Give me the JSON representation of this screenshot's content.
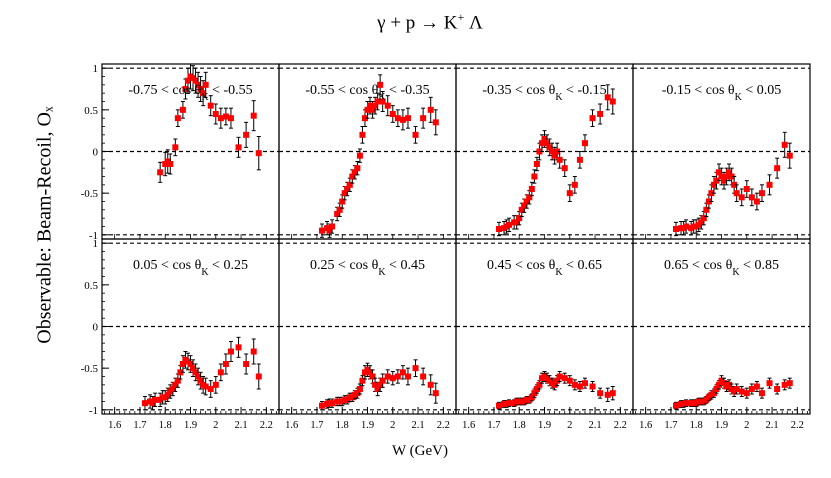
{
  "figure": {
    "title_prefix": "γ + p → K",
    "title_sup": "+",
    "title_suffix": " Λ",
    "ylabel": "Observable: Beam-Recoil, Oₓ",
    "xlabel": "W (GeV)",
    "y_ticks": [
      "1",
      "0.5",
      "0",
      "-0.5",
      "-1"
    ],
    "x_ticks": [
      "1.6",
      "1.7",
      "1.8",
      "1.9",
      "2",
      "2.1",
      "2.2"
    ]
  },
  "colors": {
    "marker": "#ff0000",
    "errorbar": "#000000",
    "reference_line": "#000000"
  },
  "chart_data": {
    "type": "scatter",
    "title": "γ + p → K⁺ Λ",
    "xlabel": "W (GeV)",
    "ylabel": "Observable: Beam-Recoil, Oₓ",
    "xlim": [
      1.55,
      2.25
    ],
    "ylim": [
      -1.05,
      1.05
    ],
    "reference_lines_y": [
      1,
      0,
      -1
    ],
    "panels": [
      {
        "label": "-0.75 < cos θK < -0.55",
        "label_parts": [
          "-0.75 < cos θ",
          "K",
          " < -0.55"
        ],
        "x": [
          1.78,
          1.8,
          1.81,
          1.82,
          1.84,
          1.85,
          1.87,
          1.88,
          1.89,
          1.9,
          1.91,
          1.92,
          1.93,
          1.94,
          1.95,
          1.96,
          1.98,
          2.0,
          2.02,
          2.04,
          2.06,
          2.09,
          2.12,
          2.15,
          2.17
        ],
        "y": [
          -0.25,
          -0.15,
          -0.12,
          -0.15,
          0.05,
          0.4,
          0.5,
          0.75,
          0.85,
          0.9,
          0.88,
          0.85,
          0.8,
          0.75,
          0.7,
          0.8,
          0.55,
          0.45,
          0.4,
          0.42,
          0.4,
          0.05,
          0.2,
          0.43,
          -0.02
        ],
        "err": [
          0.12,
          0.14,
          0.14,
          0.12,
          0.1,
          0.1,
          0.1,
          0.12,
          0.15,
          0.15,
          0.15,
          0.15,
          0.15,
          0.15,
          0.15,
          0.15,
          0.12,
          0.12,
          0.12,
          0.1,
          0.12,
          0.12,
          0.15,
          0.18,
          0.2
        ]
      },
      {
        "label": "-0.55 < cos θK < -0.35",
        "label_parts": [
          "-0.55 < cos θ",
          "K",
          " < -0.35"
        ],
        "x": [
          1.72,
          1.74,
          1.75,
          1.76,
          1.78,
          1.79,
          1.8,
          1.81,
          1.82,
          1.83,
          1.84,
          1.85,
          1.86,
          1.87,
          1.88,
          1.89,
          1.9,
          1.91,
          1.92,
          1.93,
          1.94,
          1.95,
          1.96,
          1.98,
          2.0,
          2.02,
          2.04,
          2.06,
          2.09,
          2.12,
          2.15,
          2.17
        ],
        "y": [
          -0.95,
          -0.92,
          -0.95,
          -0.9,
          -0.75,
          -0.7,
          -0.6,
          -0.5,
          -0.45,
          -0.4,
          -0.3,
          -0.25,
          -0.2,
          -0.05,
          0.2,
          0.4,
          0.5,
          0.55,
          0.5,
          0.55,
          0.6,
          0.8,
          0.6,
          0.55,
          0.45,
          0.4,
          0.38,
          0.4,
          0.2,
          0.4,
          0.5,
          0.35
        ],
        "err": [
          0.08,
          0.08,
          0.08,
          0.08,
          0.08,
          0.08,
          0.08,
          0.08,
          0.08,
          0.08,
          0.08,
          0.08,
          0.08,
          0.08,
          0.1,
          0.1,
          0.1,
          0.1,
          0.1,
          0.1,
          0.1,
          0.12,
          0.12,
          0.12,
          0.1,
          0.1,
          0.12,
          0.12,
          0.1,
          0.12,
          0.15,
          0.15
        ]
      },
      {
        "label": "-0.35 < cos θK < -0.15",
        "label_parts": [
          "-0.35 < cos θ",
          "K",
          " < -0.15"
        ],
        "x": [
          1.72,
          1.74,
          1.75,
          1.76,
          1.78,
          1.79,
          1.8,
          1.81,
          1.82,
          1.83,
          1.84,
          1.85,
          1.86,
          1.87,
          1.88,
          1.89,
          1.9,
          1.91,
          1.92,
          1.93,
          1.94,
          1.95,
          1.96,
          1.98,
          2.0,
          2.02,
          2.04,
          2.06,
          2.09,
          2.12,
          2.15,
          2.17
        ],
        "y": [
          -0.93,
          -0.92,
          -0.9,
          -0.88,
          -0.85,
          -0.85,
          -0.8,
          -0.7,
          -0.65,
          -0.6,
          -0.55,
          -0.45,
          -0.3,
          -0.15,
          0.0,
          0.1,
          0.15,
          0.1,
          0.05,
          0.0,
          -0.05,
          0.0,
          -0.1,
          -0.2,
          -0.5,
          -0.4,
          -0.1,
          0.1,
          0.4,
          0.45,
          0.65,
          0.6
        ],
        "err": [
          0.08,
          0.08,
          0.08,
          0.08,
          0.08,
          0.08,
          0.08,
          0.08,
          0.08,
          0.08,
          0.08,
          0.08,
          0.08,
          0.08,
          0.1,
          0.1,
          0.1,
          0.1,
          0.1,
          0.1,
          0.1,
          0.1,
          0.1,
          0.1,
          0.1,
          0.1,
          0.1,
          0.1,
          0.1,
          0.12,
          0.15,
          0.15
        ]
      },
      {
        "label": "-0.15 < cos θK < 0.05",
        "label_parts": [
          "-0.15 < cos θ",
          "K",
          " < 0.05"
        ],
        "x": [
          1.72,
          1.74,
          1.75,
          1.76,
          1.78,
          1.79,
          1.8,
          1.81,
          1.82,
          1.83,
          1.84,
          1.85,
          1.86,
          1.87,
          1.88,
          1.89,
          1.9,
          1.91,
          1.92,
          1.93,
          1.94,
          1.95,
          1.96,
          1.98,
          2.0,
          2.02,
          2.04,
          2.06,
          2.09,
          2.12,
          2.15,
          2.17
        ],
        "y": [
          -0.93,
          -0.92,
          -0.92,
          -0.9,
          -0.92,
          -0.9,
          -0.9,
          -0.88,
          -0.85,
          -0.8,
          -0.7,
          -0.6,
          -0.5,
          -0.4,
          -0.35,
          -0.25,
          -0.3,
          -0.35,
          -0.3,
          -0.25,
          -0.3,
          -0.4,
          -0.5,
          -0.55,
          -0.45,
          -0.55,
          -0.6,
          -0.5,
          -0.4,
          -0.2,
          0.08,
          -0.05
        ],
        "err": [
          0.08,
          0.08,
          0.08,
          0.08,
          0.08,
          0.08,
          0.08,
          0.08,
          0.08,
          0.08,
          0.08,
          0.08,
          0.1,
          0.1,
          0.1,
          0.1,
          0.1,
          0.1,
          0.1,
          0.1,
          0.1,
          0.1,
          0.1,
          0.1,
          0.1,
          0.1,
          0.1,
          0.1,
          0.12,
          0.12,
          0.15,
          0.15
        ]
      },
      {
        "label": "0.05 < cos θK < 0.25",
        "label_parts": [
          "0.05 < cos θ",
          "K",
          " < 0.25"
        ],
        "x": [
          1.72,
          1.74,
          1.75,
          1.76,
          1.78,
          1.79,
          1.8,
          1.81,
          1.82,
          1.83,
          1.84,
          1.85,
          1.86,
          1.87,
          1.88,
          1.89,
          1.9,
          1.91,
          1.92,
          1.93,
          1.94,
          1.95,
          1.96,
          1.98,
          2.0,
          2.02,
          2.04,
          2.06,
          2.09,
          2.12,
          2.15,
          2.17
        ],
        "y": [
          -0.92,
          -0.9,
          -0.92,
          -0.88,
          -0.88,
          -0.85,
          -0.85,
          -0.82,
          -0.78,
          -0.75,
          -0.7,
          -0.65,
          -0.55,
          -0.45,
          -0.4,
          -0.42,
          -0.45,
          -0.5,
          -0.55,
          -0.6,
          -0.65,
          -0.7,
          -0.72,
          -0.75,
          -0.7,
          -0.55,
          -0.45,
          -0.3,
          -0.25,
          -0.45,
          -0.3,
          -0.6
        ],
        "err": [
          0.08,
          0.08,
          0.08,
          0.08,
          0.08,
          0.08,
          0.08,
          0.08,
          0.08,
          0.08,
          0.08,
          0.08,
          0.08,
          0.1,
          0.1,
          0.1,
          0.1,
          0.1,
          0.1,
          0.1,
          0.1,
          0.1,
          0.1,
          0.1,
          0.1,
          0.1,
          0.12,
          0.12,
          0.12,
          0.12,
          0.15,
          0.15
        ]
      },
      {
        "label": "0.25 < cos θK < 0.45",
        "label_parts": [
          "0.25 < cos θ",
          "K",
          " < 0.45"
        ],
        "x": [
          1.72,
          1.74,
          1.75,
          1.76,
          1.78,
          1.79,
          1.8,
          1.81,
          1.82,
          1.83,
          1.84,
          1.85,
          1.86,
          1.87,
          1.88,
          1.89,
          1.9,
          1.91,
          1.92,
          1.93,
          1.94,
          1.95,
          1.96,
          1.98,
          2.0,
          2.02,
          2.04,
          2.06,
          2.09,
          2.12,
          2.15,
          2.17
        ],
        "y": [
          -0.95,
          -0.93,
          -0.92,
          -0.92,
          -0.9,
          -0.9,
          -0.9,
          -0.88,
          -0.88,
          -0.85,
          -0.85,
          -0.82,
          -0.8,
          -0.75,
          -0.65,
          -0.55,
          -0.52,
          -0.55,
          -0.6,
          -0.7,
          -0.75,
          -0.7,
          -0.65,
          -0.6,
          -0.62,
          -0.6,
          -0.55,
          -0.6,
          -0.5,
          -0.6,
          -0.7,
          -0.8
        ],
        "err": [
          0.05,
          0.05,
          0.05,
          0.05,
          0.05,
          0.05,
          0.05,
          0.05,
          0.05,
          0.05,
          0.05,
          0.05,
          0.06,
          0.06,
          0.06,
          0.08,
          0.08,
          0.08,
          0.08,
          0.08,
          0.08,
          0.08,
          0.08,
          0.08,
          0.08,
          0.08,
          0.08,
          0.1,
          0.1,
          0.1,
          0.12,
          0.12
        ]
      },
      {
        "label": "0.45 < cos θK < 0.65",
        "label_parts": [
          "0.45 < cos θ",
          "K",
          " < 0.65"
        ],
        "x": [
          1.72,
          1.74,
          1.75,
          1.76,
          1.78,
          1.79,
          1.8,
          1.81,
          1.82,
          1.83,
          1.84,
          1.85,
          1.86,
          1.87,
          1.88,
          1.89,
          1.9,
          1.91,
          1.92,
          1.93,
          1.94,
          1.95,
          1.96,
          1.98,
          2.0,
          2.02,
          2.04,
          2.06,
          2.09,
          2.12,
          2.15,
          2.17
        ],
        "y": [
          -0.95,
          -0.93,
          -0.93,
          -0.92,
          -0.92,
          -0.9,
          -0.9,
          -0.9,
          -0.9,
          -0.88,
          -0.88,
          -0.85,
          -0.8,
          -0.75,
          -0.7,
          -0.62,
          -0.6,
          -0.62,
          -0.65,
          -0.68,
          -0.7,
          -0.65,
          -0.6,
          -0.62,
          -0.65,
          -0.7,
          -0.72,
          -0.68,
          -0.72,
          -0.8,
          -0.82,
          -0.8
        ],
        "err": [
          0.04,
          0.04,
          0.04,
          0.04,
          0.04,
          0.04,
          0.04,
          0.04,
          0.04,
          0.04,
          0.04,
          0.04,
          0.05,
          0.05,
          0.05,
          0.06,
          0.06,
          0.06,
          0.06,
          0.06,
          0.06,
          0.06,
          0.06,
          0.06,
          0.06,
          0.06,
          0.06,
          0.06,
          0.06,
          0.06,
          0.08,
          0.08
        ]
      },
      {
        "label": "0.65 < cos θK < 0.85",
        "label_parts": [
          "0.65 < cos θ",
          "K",
          " < 0.85"
        ],
        "x": [
          1.72,
          1.74,
          1.75,
          1.76,
          1.78,
          1.79,
          1.8,
          1.81,
          1.82,
          1.83,
          1.84,
          1.85,
          1.86,
          1.87,
          1.88,
          1.89,
          1.9,
          1.91,
          1.92,
          1.93,
          1.94,
          1.95,
          1.96,
          1.98,
          2.0,
          2.02,
          2.04,
          2.06,
          2.09,
          2.12,
          2.15,
          2.17
        ],
        "y": [
          -0.95,
          -0.93,
          -0.93,
          -0.92,
          -0.92,
          -0.92,
          -0.92,
          -0.9,
          -0.9,
          -0.9,
          -0.88,
          -0.85,
          -0.82,
          -0.8,
          -0.75,
          -0.7,
          -0.65,
          -0.68,
          -0.72,
          -0.7,
          -0.75,
          -0.78,
          -0.75,
          -0.78,
          -0.8,
          -0.75,
          -0.72,
          -0.8,
          -0.68,
          -0.75,
          -0.7,
          -0.68
        ],
        "err": [
          0.04,
          0.04,
          0.04,
          0.04,
          0.04,
          0.04,
          0.04,
          0.04,
          0.04,
          0.04,
          0.04,
          0.04,
          0.05,
          0.05,
          0.05,
          0.05,
          0.06,
          0.06,
          0.06,
          0.06,
          0.06,
          0.06,
          0.06,
          0.06,
          0.06,
          0.06,
          0.06,
          0.06,
          0.06,
          0.06,
          0.06,
          0.06
        ]
      }
    ]
  }
}
